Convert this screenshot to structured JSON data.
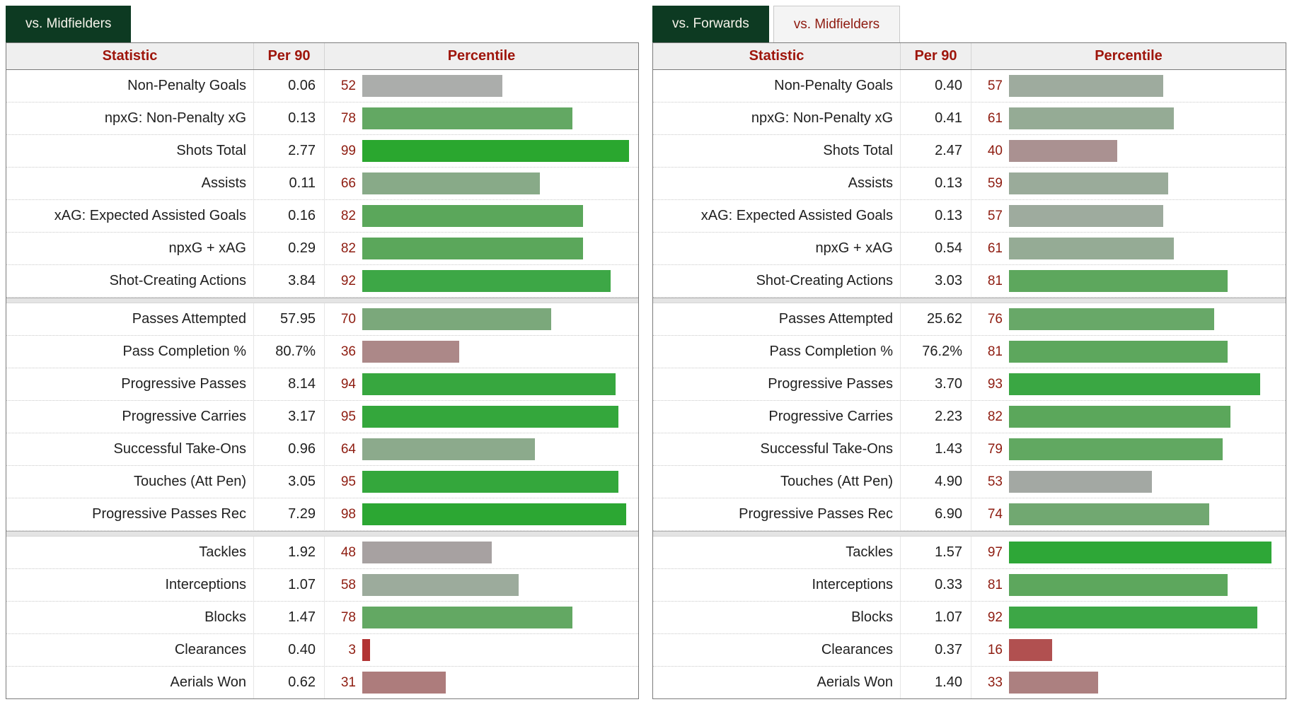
{
  "colors": {
    "active_tab_bg": "#0d3a22",
    "active_tab_text": "#f6f3ea",
    "inactive_tab_bg": "#f4f4f4",
    "header_text": "#9e150b",
    "percentile_number_text": "#8e1c10",
    "table_border": "#7b7b7b"
  },
  "left_table": {
    "tabs": [
      {
        "label": "vs. Midfielders",
        "active": true
      }
    ],
    "columns": {
      "statistic": "Statistic",
      "per90": "Per 90",
      "percentile": "Percentile"
    },
    "groups": [
      {
        "rows": [
          {
            "stat": "Non-Penalty Goals",
            "per90": "0.06",
            "percentile": 52,
            "color": "#abadab"
          },
          {
            "stat": "npxG: Non-Penalty xG",
            "per90": "0.13",
            "percentile": 78,
            "color": "#63a863"
          },
          {
            "stat": "Shots Total",
            "per90": "2.77",
            "percentile": 99,
            "color": "#2aa72f"
          },
          {
            "stat": "Assists",
            "per90": "0.11",
            "percentile": 66,
            "color": "#88aa88"
          },
          {
            "stat": "xAG: Expected Assisted Goals",
            "per90": "0.16",
            "percentile": 82,
            "color": "#5ba75b"
          },
          {
            "stat": "npxG + xAG",
            "per90": "0.29",
            "percentile": 82,
            "color": "#5ba75b"
          },
          {
            "stat": "Shot-Creating Actions",
            "per90": "3.84",
            "percentile": 92,
            "color": "#3da746"
          }
        ]
      },
      {
        "rows": [
          {
            "stat": "Passes Attempted",
            "per90": "57.95",
            "percentile": 70,
            "color": "#7ba87b"
          },
          {
            "stat": "Pass Completion %",
            "per90": "80.7%",
            "percentile": 36,
            "color": "#ac8888"
          },
          {
            "stat": "Progressive Passes",
            "per90": "8.14",
            "percentile": 94,
            "color": "#37a73f"
          },
          {
            "stat": "Progressive Carries",
            "per90": "3.17",
            "percentile": 95,
            "color": "#34a73c"
          },
          {
            "stat": "Successful Take-Ons",
            "per90": "0.96",
            "percentile": 64,
            "color": "#8caa8c"
          },
          {
            "stat": "Touches (Att Pen)",
            "per90": "3.05",
            "percentile": 95,
            "color": "#34a73c"
          },
          {
            "stat": "Progressive Passes Rec",
            "per90": "7.29",
            "percentile": 98,
            "color": "#2ca733"
          }
        ]
      },
      {
        "rows": [
          {
            "stat": "Tackles",
            "per90": "1.92",
            "percentile": 48,
            "color": "#a7a1a1"
          },
          {
            "stat": "Interceptions",
            "per90": "1.07",
            "percentile": 58,
            "color": "#9cab9c"
          },
          {
            "stat": "Blocks",
            "per90": "1.47",
            "percentile": 78,
            "color": "#63a863"
          },
          {
            "stat": "Clearances",
            "per90": "0.40",
            "percentile": 3,
            "color": "#b23434"
          },
          {
            "stat": "Aerials Won",
            "per90": "0.62",
            "percentile": 31,
            "color": "#ad7c7c"
          }
        ]
      }
    ]
  },
  "right_table": {
    "tabs": [
      {
        "label": "vs. Forwards",
        "active": true
      },
      {
        "label": "vs. Midfielders",
        "active": false
      }
    ],
    "columns": {
      "statistic": "Statistic",
      "per90": "Per 90",
      "percentile": "Percentile"
    },
    "groups": [
      {
        "rows": [
          {
            "stat": "Non-Penalty Goals",
            "per90": "0.40",
            "percentile": 57,
            "color": "#9eab9e"
          },
          {
            "stat": "npxG: Non-Penalty xG",
            "per90": "0.41",
            "percentile": 61,
            "color": "#95ab95"
          },
          {
            "stat": "Shots Total",
            "per90": "2.47",
            "percentile": 40,
            "color": "#aa9191"
          },
          {
            "stat": "Assists",
            "per90": "0.13",
            "percentile": 59,
            "color": "#9aab9a"
          },
          {
            "stat": "xAG: Expected Assisted Goals",
            "per90": "0.13",
            "percentile": 57,
            "color": "#9eab9e"
          },
          {
            "stat": "npxG + xAG",
            "per90": "0.54",
            "percentile": 61,
            "color": "#95ab95"
          },
          {
            "stat": "Shot-Creating Actions",
            "per90": "3.03",
            "percentile": 81,
            "color": "#5da75d"
          }
        ]
      },
      {
        "rows": [
          {
            "stat": "Passes Attempted",
            "per90": "25.62",
            "percentile": 76,
            "color": "#68a868"
          },
          {
            "stat": "Pass Completion %",
            "per90": "76.2%",
            "percentile": 81,
            "color": "#5da75d"
          },
          {
            "stat": "Progressive Passes",
            "per90": "3.70",
            "percentile": 93,
            "color": "#3aa743"
          },
          {
            "stat": "Progressive Carries",
            "per90": "2.23",
            "percentile": 82,
            "color": "#5ba75b"
          },
          {
            "stat": "Successful Take-Ons",
            "per90": "1.43",
            "percentile": 79,
            "color": "#61a861"
          },
          {
            "stat": "Touches (Att Pen)",
            "per90": "4.90",
            "percentile": 53,
            "color": "#a3a8a3"
          },
          {
            "stat": "Progressive Passes Rec",
            "per90": "6.90",
            "percentile": 74,
            "color": "#71a871"
          }
        ]
      },
      {
        "rows": [
          {
            "stat": "Tackles",
            "per90": "1.57",
            "percentile": 97,
            "color": "#2ea737"
          },
          {
            "stat": "Interceptions",
            "per90": "0.33",
            "percentile": 81,
            "color": "#5da75d"
          },
          {
            "stat": "Blocks",
            "per90": "1.07",
            "percentile": 92,
            "color": "#3da746"
          },
          {
            "stat": "Clearances",
            "per90": "0.37",
            "percentile": 16,
            "color": "#b15050"
          },
          {
            "stat": "Aerials Won",
            "per90": "1.40",
            "percentile": 33,
            "color": "#ac8080"
          }
        ]
      }
    ]
  }
}
